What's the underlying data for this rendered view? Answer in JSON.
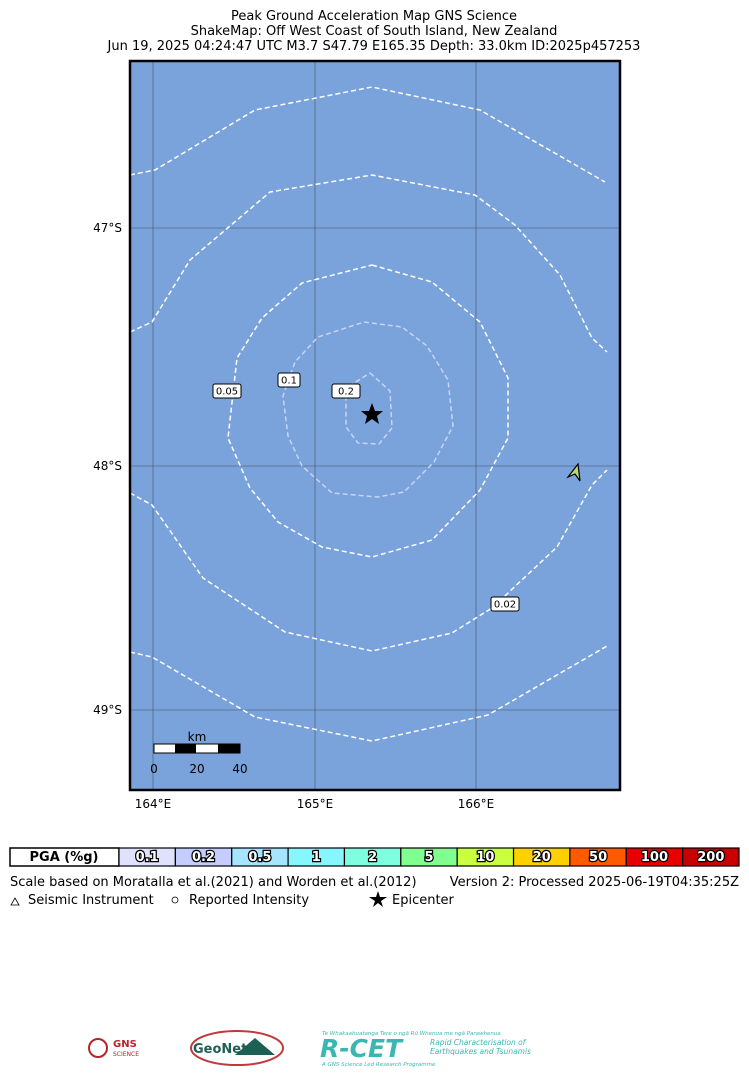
{
  "header": {
    "lines": [
      "Peak Ground Acceleration Map GNS Science",
      "ShakeMap: Off West Coast of South Island, New Zealand",
      "Jun 19, 2025 04:24:47 UTC M3.7 S47.79 E165.35 Depth: 33.0km ID:2025p457253"
    ]
  },
  "map": {
    "lat_labels": [
      "47°S",
      "48°S",
      "49°S"
    ],
    "lon_labels": [
      "164°E",
      "165°E",
      "166°E"
    ],
    "contour_labels": [
      "0.05",
      "0.1",
      "0.2",
      "0.02"
    ],
    "scale_bar": {
      "unit": "km",
      "labels": [
        "0",
        "20",
        "40"
      ]
    }
  },
  "legend": {
    "header": "PGA (%g)",
    "bins": [
      {
        "label": "0.1",
        "color": "#dfe1fd"
      },
      {
        "label": "0.2",
        "color": "#c4cdfe"
      },
      {
        "label": "0.5",
        "color": "#a5e6fe"
      },
      {
        "label": "1",
        "color": "#86f6ff"
      },
      {
        "label": "2",
        "color": "#80ffe0"
      },
      {
        "label": "5",
        "color": "#80ff90"
      },
      {
        "label": "10",
        "color": "#caff40"
      },
      {
        "label": "20",
        "color": "#ffd100"
      },
      {
        "label": "50",
        "color": "#ff5a00"
      },
      {
        "label": "100",
        "color": "#e80000"
      },
      {
        "label": "200",
        "color": "#c80000"
      }
    ]
  },
  "footer": {
    "scale_note": "Scale based on Moratalla et al.(2021) and Worden et al.(2012)",
    "version": "Version 2: Processed 2025-06-19T04:35:25Z",
    "symbols": [
      "Seismic Instrument",
      "Reported Intensity",
      "Epicenter"
    ]
  },
  "logos": {
    "gns": "GNS",
    "gns_sub": "SCIENCE",
    "geonet": "GeoNet",
    "rcet": "R-CET",
    "rcet_top": "Te Whakaahuatanga Tere o ngā Rū Whenua me ngā Parawhenua",
    "rcet_sub1": "Rapid Characterisation of",
    "rcet_sub2": "Earthquakes and Tsunamis",
    "rcet_foot": "A GNS Science Led Research Programme"
  }
}
